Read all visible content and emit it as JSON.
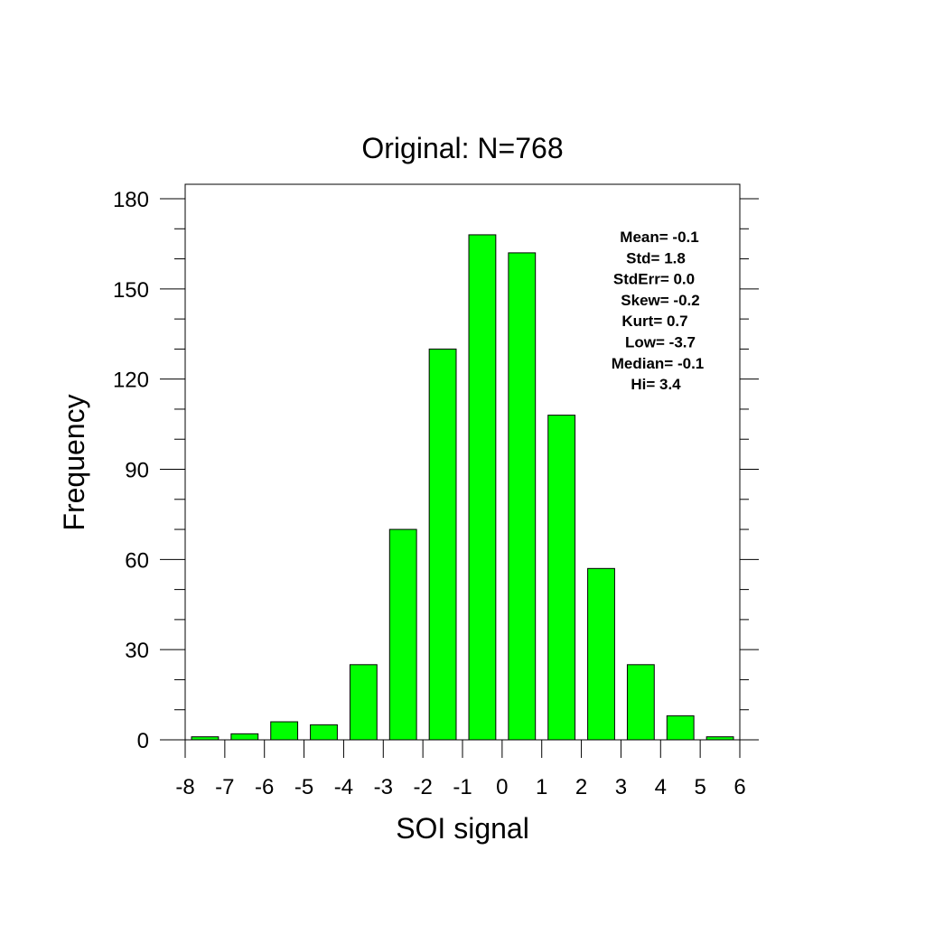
{
  "chart_data": {
    "type": "bar",
    "title": "Original: N=768",
    "xlabel": "SOI signal",
    "ylabel": "Frequency",
    "xlim": [
      -8,
      6
    ],
    "ylim": [
      0,
      180
    ],
    "x_ticks": [
      "-8",
      "-7",
      "-6",
      "-5",
      "-4",
      "-3",
      "-2",
      "-1",
      "0",
      "1",
      "2",
      "3",
      "4",
      "5",
      "6"
    ],
    "y_ticks": [
      "0",
      "30",
      "60",
      "90",
      "120",
      "150",
      "180"
    ],
    "bin_centers": [
      -7.5,
      -6.5,
      -5.5,
      -4.5,
      -3.5,
      -2.5,
      -1.5,
      -0.5,
      0.5,
      1.5,
      2.5,
      3.5,
      4.5,
      5.5
    ],
    "values": [
      1,
      2,
      6,
      5,
      25,
      70,
      130,
      168,
      162,
      108,
      57,
      25,
      8,
      1
    ],
    "bar_color": "#00ff00",
    "grid": false,
    "stats": [
      "Mean= -0.1",
      "Std=  1.8",
      "StdErr=  0.0",
      "Skew= -0.2",
      "Kurt=  0.7",
      "Low= -3.7",
      "Median= -0.1",
      "Hi=  3.4"
    ]
  }
}
